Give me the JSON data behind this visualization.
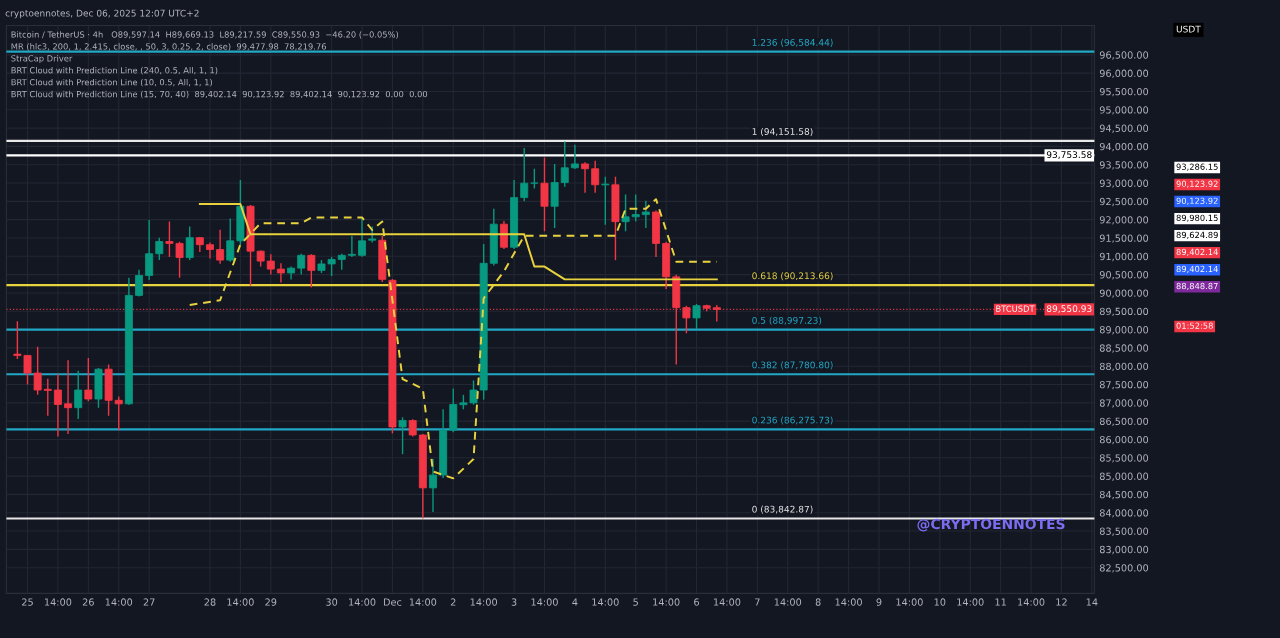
{
  "chart_data": {
    "type": "candlestick",
    "title": "Bitcoin / TetherUS · 4h",
    "subtitle": "cryptoennotes, Dec 06, 2025 12:07 UTC+2",
    "x": [
      "2025-11-24T20:00",
      "2025-11-25T00:00",
      "2025-11-25T04:00",
      "2025-11-25T08:00",
      "2025-11-25T12:00",
      "2025-11-25T16:00",
      "2025-11-25T20:00",
      "2025-11-26T00:00",
      "2025-11-26T04:00",
      "2025-11-26T08:00",
      "2025-11-26T12:00",
      "2025-11-26T16:00",
      "2025-11-26T20:00",
      "2025-11-27T00:00",
      "2025-11-27T04:00",
      "2025-11-27T08:00",
      "2025-11-27T12:00",
      "2025-11-27T16:00",
      "2025-11-27T20:00",
      "2025-11-28T00:00",
      "2025-11-28T04:00",
      "2025-11-28T08:00",
      "2025-11-28T12:00",
      "2025-11-28T16:00",
      "2025-11-28T20:00",
      "2025-11-29T00:00",
      "2025-11-29T04:00",
      "2025-11-29T08:00",
      "2025-11-29T12:00",
      "2025-11-29T16:00",
      "2025-11-29T20:00",
      "2025-11-30T00:00",
      "2025-11-30T04:00",
      "2025-11-30T08:00",
      "2025-11-30T12:00",
      "2025-11-30T16:00",
      "2025-11-30T20:00",
      "2025-12-01T00:00",
      "2025-12-01T04:00",
      "2025-12-01T08:00",
      "2025-12-01T12:00",
      "2025-12-01T16:00",
      "2025-12-01T20:00",
      "2025-12-02T00:00",
      "2025-12-02T04:00",
      "2025-12-02T08:00",
      "2025-12-02T12:00",
      "2025-12-02T16:00",
      "2025-12-02T20:00",
      "2025-12-03T00:00",
      "2025-12-03T04:00",
      "2025-12-03T08:00",
      "2025-12-03T12:00",
      "2025-12-03T16:00",
      "2025-12-03T20:00",
      "2025-12-04T00:00",
      "2025-12-04T04:00",
      "2025-12-04T08:00",
      "2025-12-04T12:00",
      "2025-12-04T16:00",
      "2025-12-04T20:00",
      "2025-12-05T00:00",
      "2025-12-05T04:00",
      "2025-12-05T08:00",
      "2025-12-05T12:00",
      "2025-12-05T16:00",
      "2025-12-05T20:00",
      "2025-12-06T00:00",
      "2025-12-06T04:00",
      "2025-12-06T08:00"
    ],
    "ohlc": [
      [
        88330,
        89230,
        88200,
        88290
      ],
      [
        88295,
        88300,
        87500,
        87813
      ],
      [
        87813,
        88532,
        87218,
        87350
      ],
      [
        87370,
        87656,
        86649,
        87340
      ],
      [
        87350,
        87787,
        86080,
        86955
      ],
      [
        86973,
        88164,
        86150,
        86868
      ],
      [
        86868,
        87875,
        86561,
        87350
      ],
      [
        87350,
        88225,
        87043,
        87104
      ],
      [
        87104,
        87950,
        86868,
        87919
      ],
      [
        87919,
        88050,
        86649,
        87069
      ],
      [
        87069,
        87174,
        86255,
        86973
      ],
      [
        86973,
        90415,
        86950,
        89933
      ],
      [
        89933,
        90634,
        89900,
        90476
      ],
      [
        90476,
        91991,
        90350,
        91071
      ],
      [
        91071,
        91509,
        90896,
        91404
      ],
      [
        91404,
        91947,
        90984,
        91352
      ],
      [
        91352,
        91400,
        90415,
        90966
      ],
      [
        90966,
        91816,
        90900,
        91509
      ],
      [
        91509,
        91530,
        91115,
        91317
      ],
      [
        91317,
        91378,
        90940,
        91185
      ],
      [
        91185,
        91728,
        90800,
        90896
      ],
      [
        90896,
        92034,
        90850,
        91422
      ],
      [
        91422,
        93085,
        91300,
        92367
      ],
      [
        92367,
        92400,
        90196,
        91141
      ],
      [
        91141,
        91160,
        90721,
        90870
      ],
      [
        90870,
        91054,
        90502,
        90651
      ],
      [
        90651,
        90809,
        90283,
        90546
      ],
      [
        90546,
        90721,
        90370,
        90677
      ],
      [
        90677,
        91071,
        90502,
        91027
      ],
      [
        91027,
        91054,
        90152,
        90616
      ],
      [
        90616,
        90896,
        90546,
        90791
      ],
      [
        90791,
        90984,
        90458,
        90914
      ],
      [
        90914,
        91071,
        90633,
        91027
      ],
      [
        91027,
        91553,
        90984,
        91054
      ],
      [
        91027,
        92034,
        90990,
        91422
      ],
      [
        91440,
        91816,
        91380,
        91474
      ],
      [
        91440,
        91560,
        90300,
        90371
      ],
      [
        90345,
        90380,
        86167,
        86342
      ],
      [
        86342,
        86605,
        85598,
        86517
      ],
      [
        86517,
        86550,
        86080,
        86123
      ],
      [
        86123,
        86150,
        83843,
        84679
      ],
      [
        84679,
        85466,
        84022,
        85029
      ],
      [
        85029,
        86824,
        84950,
        86255
      ],
      [
        86255,
        87393,
        86200,
        86955
      ],
      [
        86950,
        87218,
        86824,
        87000
      ],
      [
        87000,
        87612,
        86950,
        87350
      ],
      [
        87350,
        91334,
        87087,
        90809
      ],
      [
        90809,
        92297,
        90750,
        91877
      ],
      [
        91877,
        91964,
        91200,
        91247
      ],
      [
        91247,
        93085,
        91200,
        92603
      ],
      [
        92603,
        93960,
        92500,
        92997
      ],
      [
        92997,
        93391,
        92850,
        93000
      ],
      [
        92997,
        93698,
        91684,
        92366
      ],
      [
        92366,
        93522,
        91771,
        93014
      ],
      [
        93014,
        94135,
        92900,
        93417
      ],
      [
        93417,
        94048,
        93380,
        93522
      ],
      [
        93522,
        93566,
        92734,
        93391
      ],
      [
        93391,
        93610,
        92734,
        92953
      ],
      [
        92950,
        93172,
        91859,
        92970
      ],
      [
        92953,
        93172,
        90895,
        91946
      ],
      [
        91946,
        92690,
        91683,
        92077
      ],
      [
        92077,
        92690,
        91950,
        92139
      ],
      [
        92139,
        92515,
        91771,
        92209
      ],
      [
        92209,
        92250,
        90983,
        91351
      ],
      [
        91351,
        91400,
        90107,
        90440
      ],
      [
        90440,
        90500,
        88049,
        89599
      ],
      [
        89599,
        89650,
        88899,
        89319
      ],
      [
        89319,
        89700,
        89012,
        89652
      ],
      [
        89652,
        89680,
        89500,
        89582
      ],
      [
        89597,
        89669,
        89218,
        89551
      ]
    ],
    "series": [
      {
        "type": "line",
        "color": "#e8d33f",
        "line_style": "solid",
        "x": [
          "2025-11-27T20:00",
          "2025-11-28T12:00",
          "2025-11-28T16:00",
          "2025-12-03T04:00",
          "2025-12-03T08:00",
          "2025-12-03T12:00",
          "2025-12-03T20:00",
          "2025-12-06T08:00"
        ],
        "values": [
          92428,
          92428,
          91600,
          91600,
          90720,
          90720,
          90370,
          90370
        ]
      },
      {
        "type": "line",
        "color": "#e8d33f",
        "line_style": "dashed",
        "x": [
          "2025-11-27T16:00",
          "2025-11-28T04:00",
          "2025-11-28T12:00",
          "2025-11-28T20:00",
          "2025-11-29T12:00",
          "2025-11-29T16:00",
          "2025-11-30T12:00",
          "2025-11-30T16:00",
          "2025-11-30T20:00",
          "2025-12-01T04:00",
          "2025-12-01T12:00",
          "2025-12-01T16:00",
          "2025-12-02T00:00",
          "2025-12-02T08:00",
          "2025-12-02T12:00",
          "2025-12-02T20:00",
          "2025-12-03T04:00",
          "2025-12-04T16:00",
          "2025-12-04T20:00",
          "2025-12-05T04:00",
          "2025-12-05T08:00",
          "2025-12-05T16:00",
          "2025-12-06T08:00"
        ],
        "values": [
          89670,
          89800,
          91325,
          91903,
          91903,
          92060,
          92060,
          91718,
          91950,
          87650,
          87384,
          85125,
          84940,
          85466,
          89853,
          90590,
          91560,
          91560,
          92297,
          92297,
          92560,
          90852,
          90852
        ]
      }
    ],
    "ref_lines": [
      {
        "axis": "y",
        "value": 96584.44,
        "label": "1.236 (96,584.44)",
        "color": "#22a7c4"
      },
      {
        "axis": "y",
        "value": 94151.58,
        "label": "1 (94,151.58)",
        "color": "#e8e8e8"
      },
      {
        "axis": "y",
        "value": 93753.58,
        "label": "93,753.58",
        "color": "#ffffff"
      },
      {
        "axis": "y",
        "value": 90213.66,
        "label": "0.618 (90,213.66)",
        "color": "#e8d33f"
      },
      {
        "axis": "y",
        "value": 89550.93,
        "label": "89,550.93",
        "color": "#f23645",
        "line_style": "dotted"
      },
      {
        "axis": "y",
        "value": 88997.23,
        "label": "0.5 (88,997.23)",
        "color": "#22a7c4"
      },
      {
        "axis": "y",
        "value": 87780.8,
        "label": "0.382 (87,780.80)",
        "color": "#22a7c4"
      },
      {
        "axis": "y",
        "value": 86275.73,
        "label": "0.236 (86,275.73)",
        "color": "#22a7c4"
      },
      {
        "axis": "y",
        "value": 83842.87,
        "label": "0 (83,842.87)",
        "color": "#e8e8e8"
      }
    ],
    "annotations": [
      "O89,597.14  H89,669.13  L89,217.59  C89,550.93  −46.20 (−0.05%)",
      "MR (hlc3, 200, 1, 2.415, close, , 50, 3, 0.25, 2, close)  99,477.98  78,219.76",
      "StraCap Driver",
      "BRT Cloud with Prediction Line (240, 0.5, All, 1, 1)",
      "BRT Cloud with Prediction Line (10, 0.5, All, 1, 1)",
      "BRT Cloud with Prediction Line (15, 70, 40)  89,402.14  90,123.92  89,402.14  90,123.92  0.00  0.00",
      "USDT",
      "BTCUSDT",
      "01:52:58",
      "@CRYPTOENNOTES",
      "93,286.15",
      "90,123.92",
      "90,123.92",
      "89,980.15",
      "89,624.89",
      "89,402.14",
      "89,402.14",
      "88,848.87"
    ],
    "xlim": [
      "2025-11-24T15:40",
      "2025-12-12T13:00"
    ],
    "xticks": [
      {
        "value": "2025-11-25T00:00",
        "label": "25"
      },
      {
        "value": "2025-11-25T12:00",
        "label": "14:00"
      },
      {
        "value": "2025-11-26T00:00",
        "label": "26"
      },
      {
        "value": "2025-11-26T12:00",
        "label": "14:00"
      },
      {
        "value": "2025-11-27T00:00",
        "label": "27"
      },
      {
        "value": "2025-11-28T00:00",
        "label": "28"
      },
      {
        "value": "2025-11-28T12:00",
        "label": "14:00"
      },
      {
        "value": "2025-11-29T00:00",
        "label": "29"
      },
      {
        "value": "2025-11-30T00:00",
        "label": "30"
      },
      {
        "value": "2025-11-30T12:00",
        "label": "14:00"
      },
      {
        "value": "2025-12-01T00:00",
        "label": "Dec"
      },
      {
        "value": "2025-12-01T12:00",
        "label": "14:00"
      },
      {
        "value": "2025-12-02T00:00",
        "label": "2"
      },
      {
        "value": "2025-12-02T12:00",
        "label": "14:00"
      },
      {
        "value": "2025-12-03T00:00",
        "label": "3"
      },
      {
        "value": "2025-12-03T12:00",
        "label": "14:00"
      },
      {
        "value": "2025-12-04T00:00",
        "label": "4"
      },
      {
        "value": "2025-12-04T12:00",
        "label": "14:00"
      },
      {
        "value": "2025-12-05T00:00",
        "label": "5"
      },
      {
        "value": "2025-12-05T12:00",
        "label": "14:00"
      },
      {
        "value": "2025-12-06T00:00",
        "label": "6"
      },
      {
        "value": "2025-12-06T12:00",
        "label": "14:00"
      },
      {
        "value": "2025-12-07T00:00",
        "label": "7"
      },
      {
        "value": "2025-12-07T12:00",
        "label": "14:00"
      },
      {
        "value": "2025-12-08T00:00",
        "label": "8"
      },
      {
        "value": "2025-12-08T12:00",
        "label": "14:00"
      },
      {
        "value": "2025-12-09T00:00",
        "label": "9"
      },
      {
        "value": "2025-12-09T12:00",
        "label": "14:00"
      },
      {
        "value": "2025-12-10T00:00",
        "label": "10"
      },
      {
        "value": "2025-12-10T12:00",
        "label": "14:00"
      },
      {
        "value": "2025-12-11T00:00",
        "label": "11"
      },
      {
        "value": "2025-12-11T12:00",
        "label": "14:00"
      },
      {
        "value": "2025-12-12T00:00",
        "label": "12"
      },
      {
        "value": "2025-12-12T12:00",
        "label": "14"
      }
    ],
    "ylim": [
      81800,
      97300
    ],
    "yticks": [
      {
        "value": 82500,
        "label": "82,500.00"
      },
      {
        "value": 83000,
        "label": "83,000.00"
      },
      {
        "value": 83500,
        "label": "83,500.00"
      },
      {
        "value": 84000,
        "label": "84,000.00"
      },
      {
        "value": 84500,
        "label": "84,500.00"
      },
      {
        "value": 85000,
        "label": "85,000.00"
      },
      {
        "value": 85500,
        "label": "85,500.00"
      },
      {
        "value": 86000,
        "label": "86,000.00"
      },
      {
        "value": 86500,
        "label": "86,500.00"
      },
      {
        "value": 87000,
        "label": "87,000.00"
      },
      {
        "value": 87500,
        "label": "87,500.00"
      },
      {
        "value": 88000,
        "label": "88,000.00"
      },
      {
        "value": 88500,
        "label": "88,500.00"
      },
      {
        "value": 89000,
        "label": "89,000.00"
      },
      {
        "value": 89500,
        "label": "89,500.00"
      },
      {
        "value": 90000,
        "label": "90,000.00"
      },
      {
        "value": 90500,
        "label": "90,500.00"
      },
      {
        "value": 91000,
        "label": "91,000.00"
      },
      {
        "value": 91500,
        "label": "91,500.00"
      },
      {
        "value": 92000,
        "label": "92,000.00"
      },
      {
        "value": 92500,
        "label": "92,500.00"
      },
      {
        "value": 93000,
        "label": "93,000.00"
      },
      {
        "value": 93500,
        "label": "93,500.00"
      },
      {
        "value": 94000,
        "label": "94,000.00"
      },
      {
        "value": 94500,
        "label": "94,500.00"
      },
      {
        "value": 95000,
        "label": "95,000.00"
      },
      {
        "value": 95500,
        "label": "95,500.00"
      },
      {
        "value": 96000,
        "label": "96,000.00"
      },
      {
        "value": 96500,
        "label": "96,500.00"
      }
    ],
    "grid": true,
    "legend": false
  }
}
